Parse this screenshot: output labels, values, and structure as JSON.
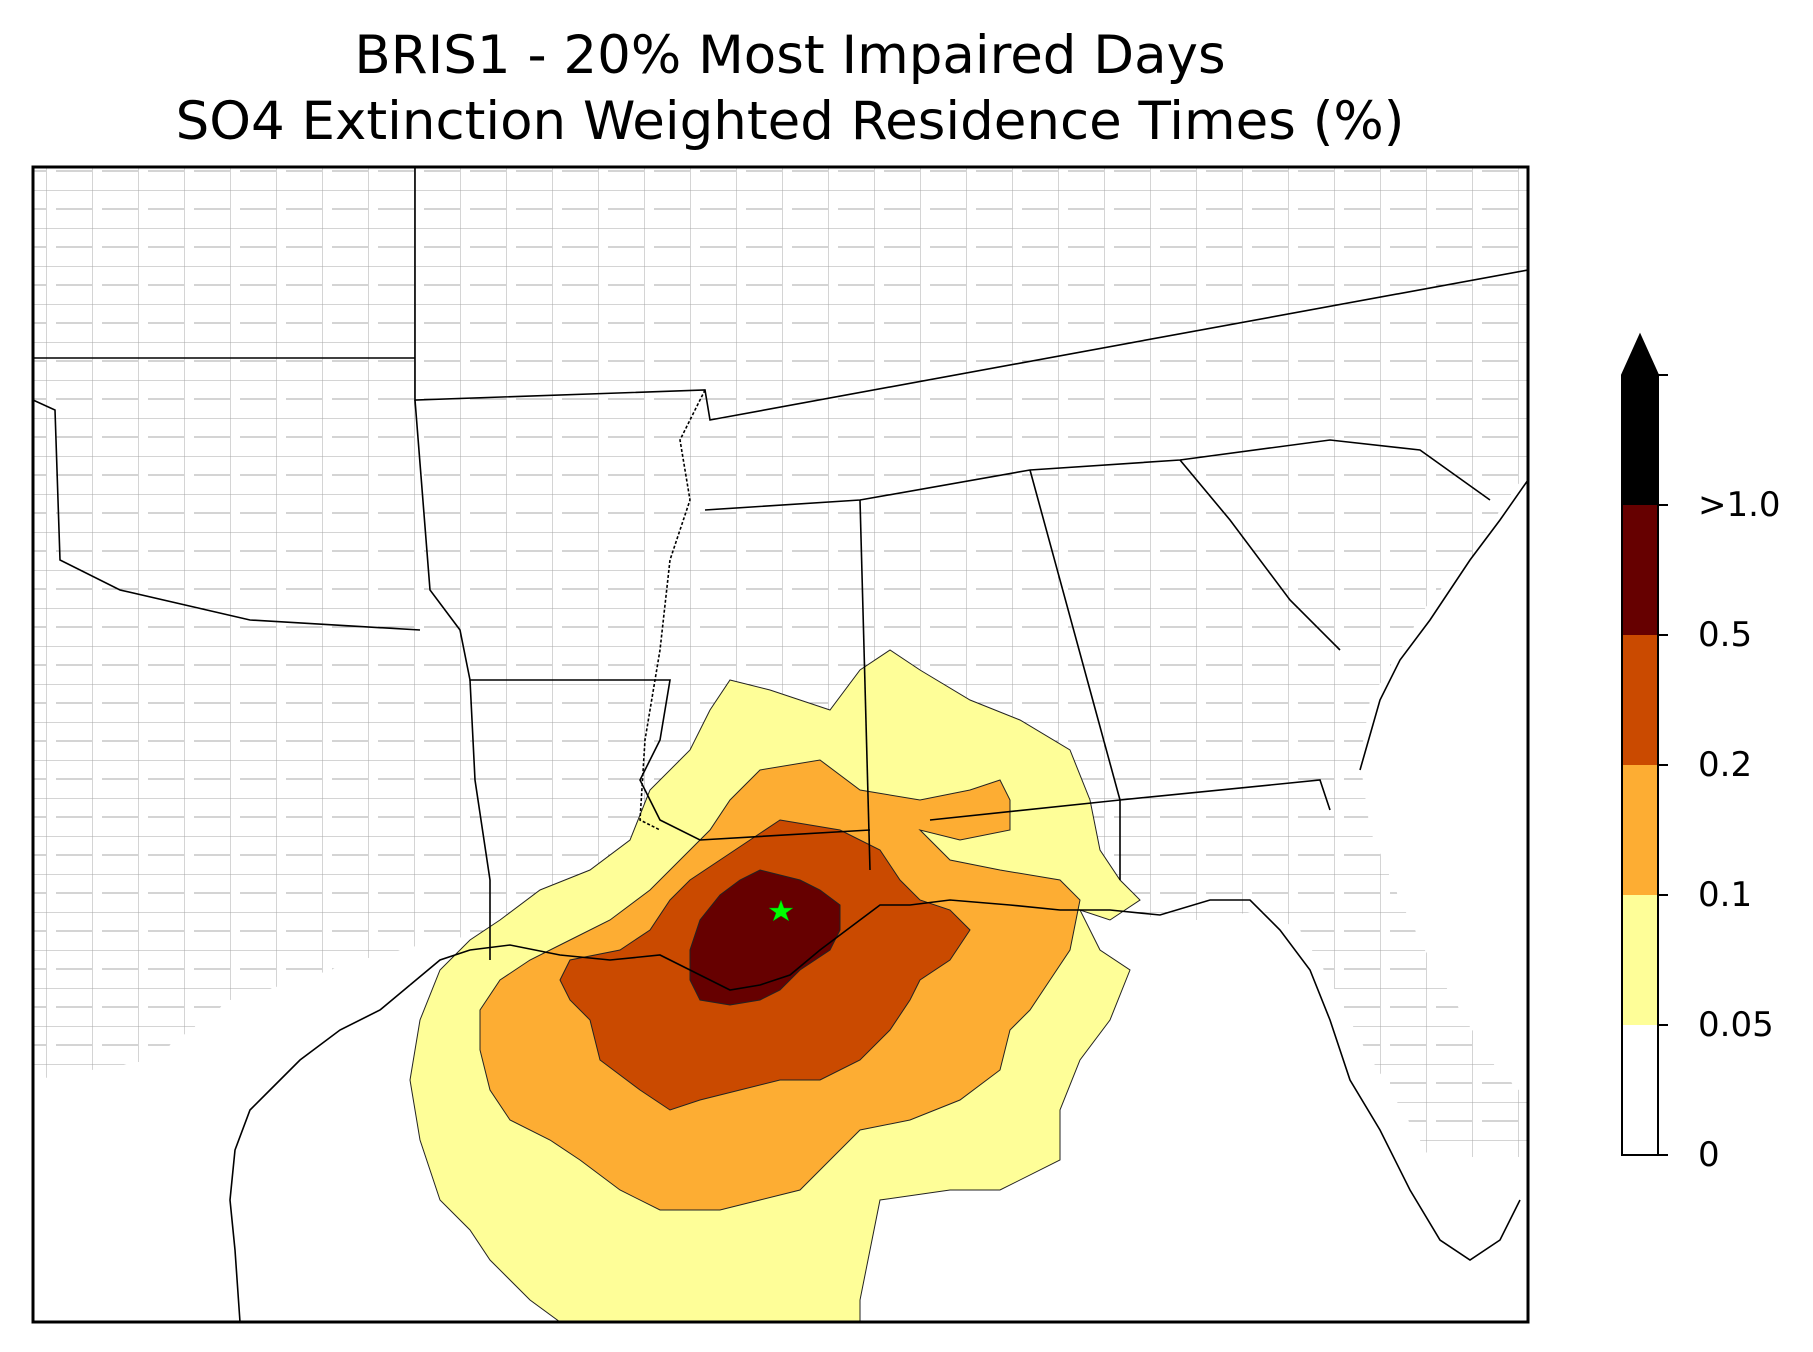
{
  "title_line1": "BRIS1 - 20% Most Impaired Days",
  "title_line2": "SO4 Extinction Weighted Residence Times (%)",
  "colorbar": {
    "levels": [
      {
        "label": "0",
        "color": "#ffffff"
      },
      {
        "label": "0.05",
        "color": "#fefe98"
      },
      {
        "label": "0.1",
        "color": "#fdad33"
      },
      {
        "label": "0.2",
        "color": "#ca4a00"
      },
      {
        "label": "0.5",
        "color": "#660000"
      },
      {
        "label": ">1.0",
        "color": "#000000"
      }
    ],
    "extend": "max"
  },
  "site_marker": {
    "symbol": "star",
    "color": "#00ff00"
  }
}
